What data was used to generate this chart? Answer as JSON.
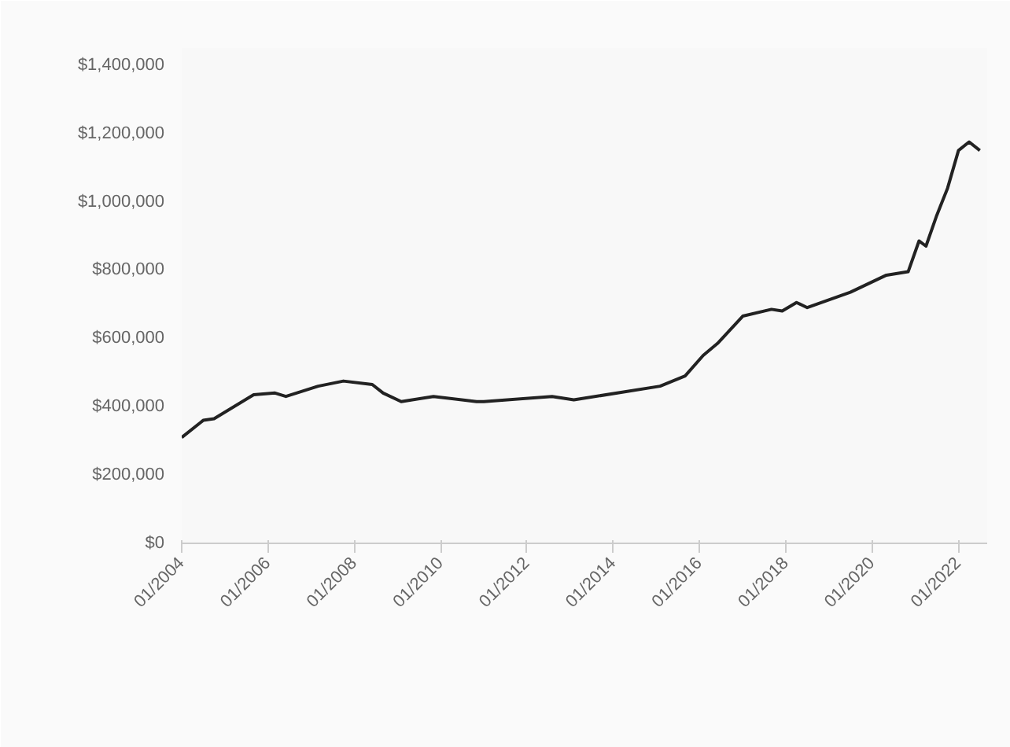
{
  "chart_data": {
    "type": "line",
    "x": [
      "2004-01",
      "2004-07",
      "2004-10",
      "2005-09",
      "2006-03",
      "2006-06",
      "2007-03",
      "2007-10",
      "2008-06",
      "2008-09",
      "2009-02",
      "2009-11",
      "2010-11",
      "2011-01",
      "2012-08",
      "2013-02",
      "2015-02",
      "2015-09",
      "2016-02",
      "2016-06",
      "2017-01",
      "2017-09",
      "2017-12",
      "2018-04",
      "2018-07",
      "2019-07",
      "2020-05",
      "2020-11",
      "2021-02",
      "2021-04",
      "2021-07",
      "2021-10",
      "2022-01",
      "2022-04",
      "2022-07"
    ],
    "series": [
      {
        "color": "#222222",
        "values": [
          310000,
          360000,
          365000,
          435000,
          440000,
          430000,
          460000,
          475000,
          465000,
          440000,
          415000,
          430000,
          415000,
          415000,
          430000,
          420000,
          460000,
          490000,
          550000,
          585000,
          665000,
          685000,
          680000,
          705000,
          690000,
          735000,
          785000,
          795000,
          885000,
          870000,
          960000,
          1040000,
          1150000,
          1175000,
          1150000
        ]
      }
    ],
    "xlim": [
      "2004-01",
      "2022-09"
    ],
    "xticks": [
      {
        "value": "2004-01",
        "label": "01/2004"
      },
      {
        "value": "2006-01",
        "label": "01/2006"
      },
      {
        "value": "2008-01",
        "label": "01/2008"
      },
      {
        "value": "2010-01",
        "label": "01/2010"
      },
      {
        "value": "2012-01",
        "label": "01/2012"
      },
      {
        "value": "2014-01",
        "label": "01/2014"
      },
      {
        "value": "2016-01",
        "label": "01/2016"
      },
      {
        "value": "2018-01",
        "label": "01/2018"
      },
      {
        "value": "2020-01",
        "label": "01/2020"
      },
      {
        "value": "2022-01",
        "label": "01/2022"
      }
    ],
    "ylim": [
      0,
      1450000
    ],
    "yticks": [
      {
        "value": 0,
        "label": "$0"
      },
      {
        "value": 200000,
        "label": "$200,000"
      },
      {
        "value": 400000,
        "label": "$400,000"
      },
      {
        "value": 600000,
        "label": "$600,000"
      },
      {
        "value": 800000,
        "label": "$800,000"
      },
      {
        "value": 1000000,
        "label": "$1,000,000"
      },
      {
        "value": 1200000,
        "label": "$1,200,000"
      },
      {
        "value": 1400000,
        "label": "$1,400,000"
      }
    ],
    "grid": false,
    "marker": "none",
    "line_style": "solid"
  }
}
